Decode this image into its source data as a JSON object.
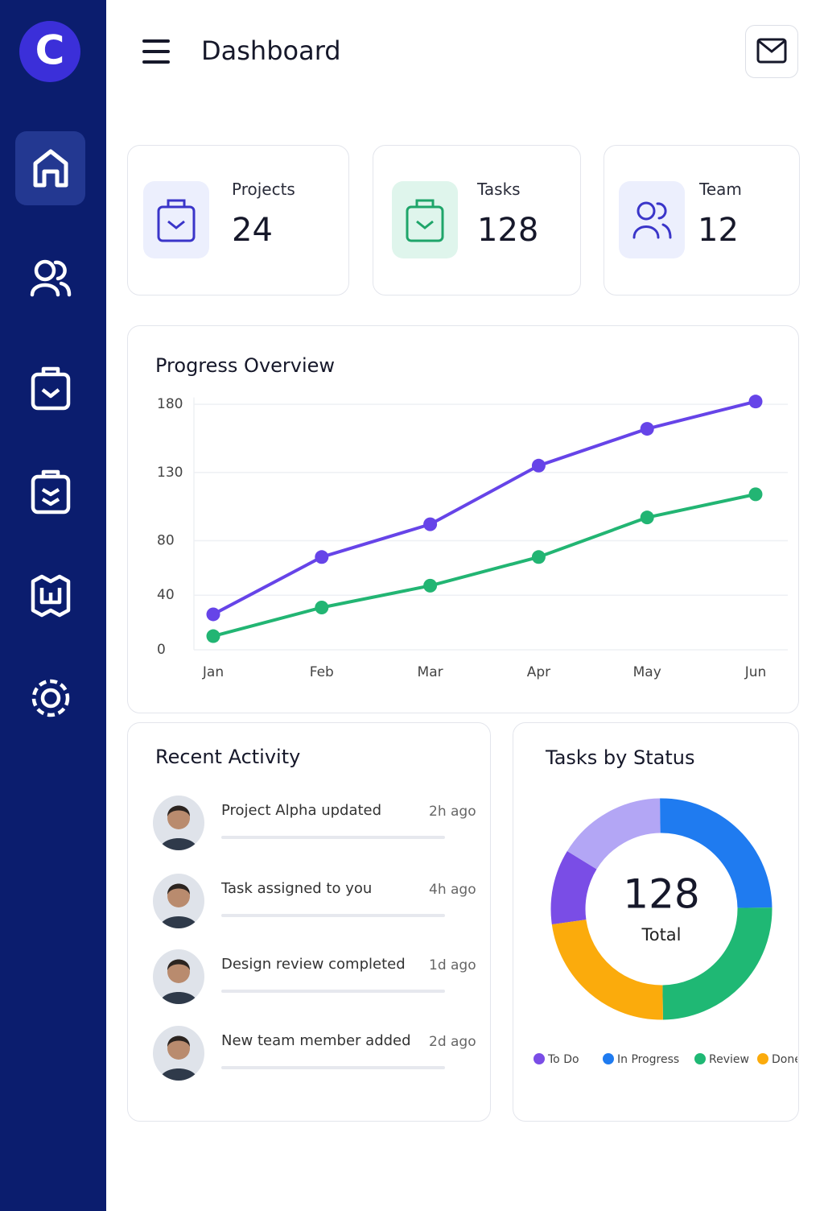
{
  "logo": "C",
  "header": {
    "title": "Dashboard"
  },
  "stats": [
    {
      "label": "Projects",
      "value": 24
    },
    {
      "label": "Tasks",
      "value": 128
    },
    {
      "label": "Team",
      "value": 12
    }
  ],
  "activity": {
    "title": "Recent Activity",
    "items": [
      {
        "text": "Project Alpha updated",
        "time": "2h ago"
      },
      {
        "text": "Task assigned to you",
        "time": "4h ago"
      },
      {
        "text": "Design review completed",
        "time": "1d ago"
      },
      {
        "text": "New team member added",
        "time": "2d ago"
      }
    ]
  },
  "chart_data": [
    {
      "type": "line",
      "title": "Progress Overview",
      "categories": [
        "Jan",
        "Feb",
        "Mar",
        "Apr",
        "May",
        "Jun"
      ],
      "series": [
        {
          "color": "#6644e8",
          "values": [
            26,
            68,
            92,
            135,
            162,
            182
          ]
        },
        {
          "color": "#22b573",
          "values": [
            10,
            31,
            47,
            68,
            97,
            114
          ]
        }
      ],
      "ylim": [
        0,
        185
      ],
      "yticks": [
        0,
        40,
        80,
        130,
        180
      ],
      "grid": true
    },
    {
      "type": "pie",
      "title": "Tasks by Status",
      "categories": [
        "To Do",
        null,
        "In Progress",
        "Review",
        "Done"
      ],
      "values": [
        11,
        16,
        25,
        25,
        23
      ],
      "colors": [
        "#7a4de6",
        "#b3a6f5",
        "#1f7bf0",
        "#1fb874",
        "#fbab0c"
      ],
      "center_value": 128,
      "center_label": "Total"
    }
  ]
}
